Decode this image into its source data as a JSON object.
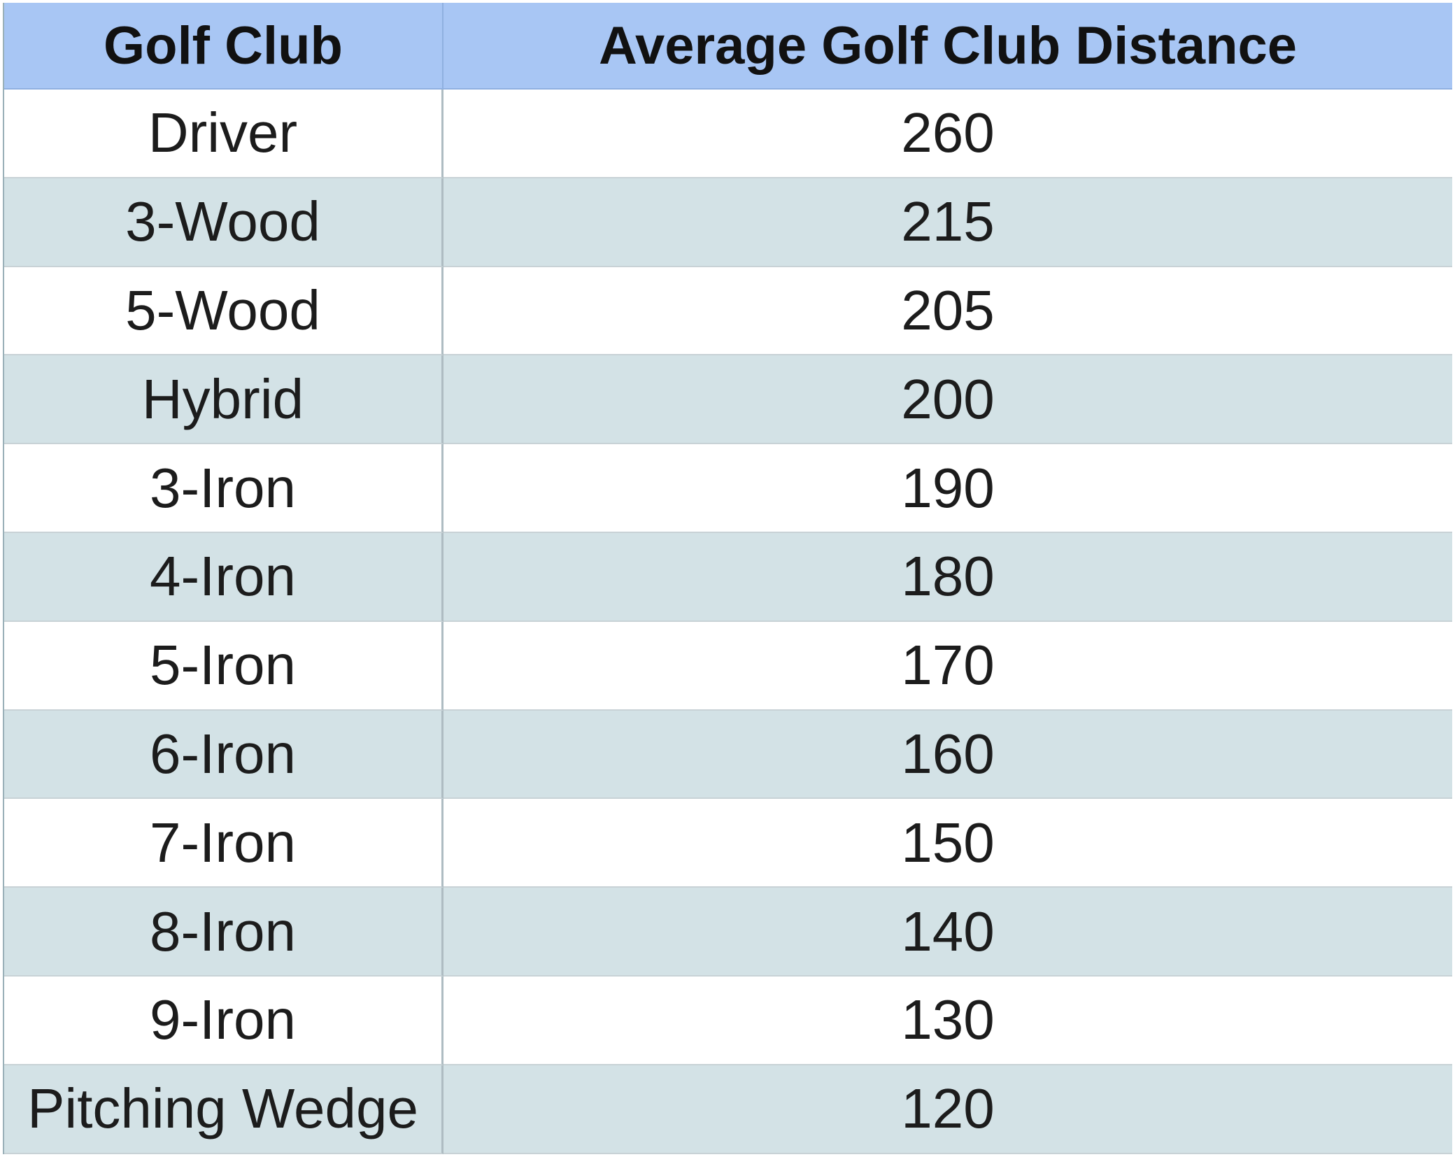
{
  "table": {
    "headers": [
      "Golf Club",
      "Average Golf Club Distance"
    ],
    "rows": [
      [
        "Driver",
        "260"
      ],
      [
        "3-Wood",
        "215"
      ],
      [
        "5-Wood",
        "205"
      ],
      [
        "Hybrid",
        "200"
      ],
      [
        "3-Iron",
        "190"
      ],
      [
        "4-Iron",
        "180"
      ],
      [
        "5-Iron",
        "170"
      ],
      [
        "6-Iron",
        "160"
      ],
      [
        "7-Iron",
        "150"
      ],
      [
        "8-Iron",
        "140"
      ],
      [
        "9-Iron",
        "130"
      ],
      [
        "Pitching Wedge",
        "120"
      ]
    ]
  },
  "colors": {
    "header_bg": "#a8c6f4",
    "band_bg": "#d3e2e6",
    "row_bg": "#ffffff"
  }
}
